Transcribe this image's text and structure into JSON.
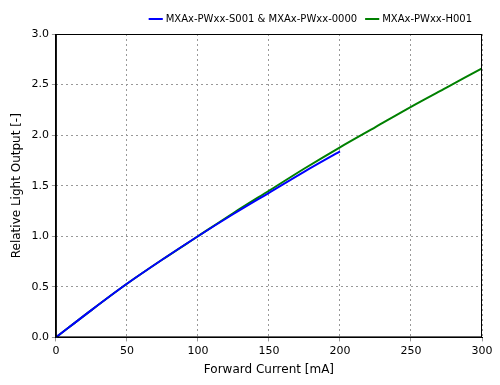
{
  "chart_data": {
    "type": "line",
    "x_label": "Forward Current [mA]",
    "y_label": "Relative Light Output [-]",
    "series": [
      {
        "name": "MXAx-PWxx-S001 & MXAx-PWxx-0000",
        "color": "#0000ff",
        "x": [
          0,
          25,
          50,
          75,
          100,
          125,
          150,
          175,
          200
        ],
        "values": [
          0,
          0.27,
          0.53,
          0.77,
          1.0,
          1.22,
          1.43,
          1.64,
          1.84
        ]
      },
      {
        "name": "MXAx-PWxx-H001",
        "color": "#008000",
        "x": [
          0,
          25,
          50,
          75,
          100,
          125,
          150,
          175,
          200,
          225,
          250,
          275,
          300
        ],
        "values": [
          0,
          0.27,
          0.53,
          0.77,
          1.0,
          1.23,
          1.45,
          1.67,
          1.88,
          2.08,
          2.28,
          2.47,
          2.66
        ]
      }
    ],
    "xlim": [
      0,
      300
    ],
    "xticks": [
      0,
      50,
      100,
      150,
      200,
      250,
      300
    ],
    "ylim": [
      0,
      3
    ],
    "yticks": [
      {
        "value": 0,
        "label": "0.0"
      },
      0.5,
      {
        "value": 1,
        "label": "1.0"
      },
      1.5,
      {
        "value": 2,
        "label": "2.0"
      },
      2.5,
      {
        "value": 3,
        "label": "3.0"
      }
    ],
    "grid": true,
    "legend": "upper right"
  }
}
